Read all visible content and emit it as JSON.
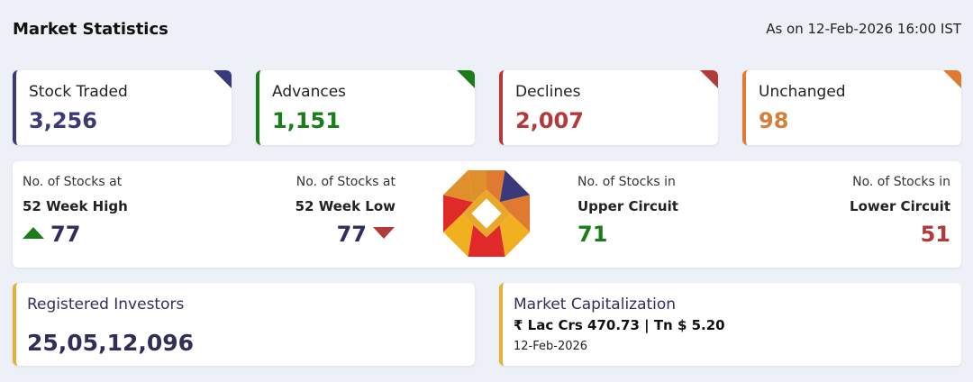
{
  "header": {
    "title": "Market Statistics",
    "as_of": "As on 12-Feb-2026 16:00 IST"
  },
  "stats": [
    {
      "label": "Stock Traded",
      "value": "3,256",
      "color": "#3a3a7a"
    },
    {
      "label": "Advances",
      "value": "1,151",
      "color": "#1a7d1a"
    },
    {
      "label": "Declines",
      "value": "2,007",
      "color": "#b33a3a"
    },
    {
      "label": "Unchanged",
      "value": "98",
      "color": "#e07a30"
    }
  ],
  "extremes": {
    "high52": {
      "sub": "No. of Stocks at",
      "name": "52 Week High",
      "value": "77",
      "color": "#2f2f5a"
    },
    "low52": {
      "sub": "No. of Stocks at",
      "name": "52 Week Low",
      "value": "77",
      "color": "#2f2f5a"
    },
    "upper": {
      "sub": "No. of Stocks in",
      "name": "Upper Circuit",
      "value": "71",
      "color": "#1a7d1a"
    },
    "lower": {
      "sub": "No. of Stocks in",
      "name": "Lower Circuit",
      "value": "51",
      "color": "#b33a3a"
    }
  },
  "logo": {
    "icon": "exchange-logo-icon"
  },
  "investors": {
    "label": "Registered Investors",
    "value": "25,05,12,096"
  },
  "market_cap": {
    "label": "Market Capitalization",
    "value": "₹ Lac Crs 470.73 | Tn $ 5.20",
    "date": "12-Feb-2026"
  }
}
